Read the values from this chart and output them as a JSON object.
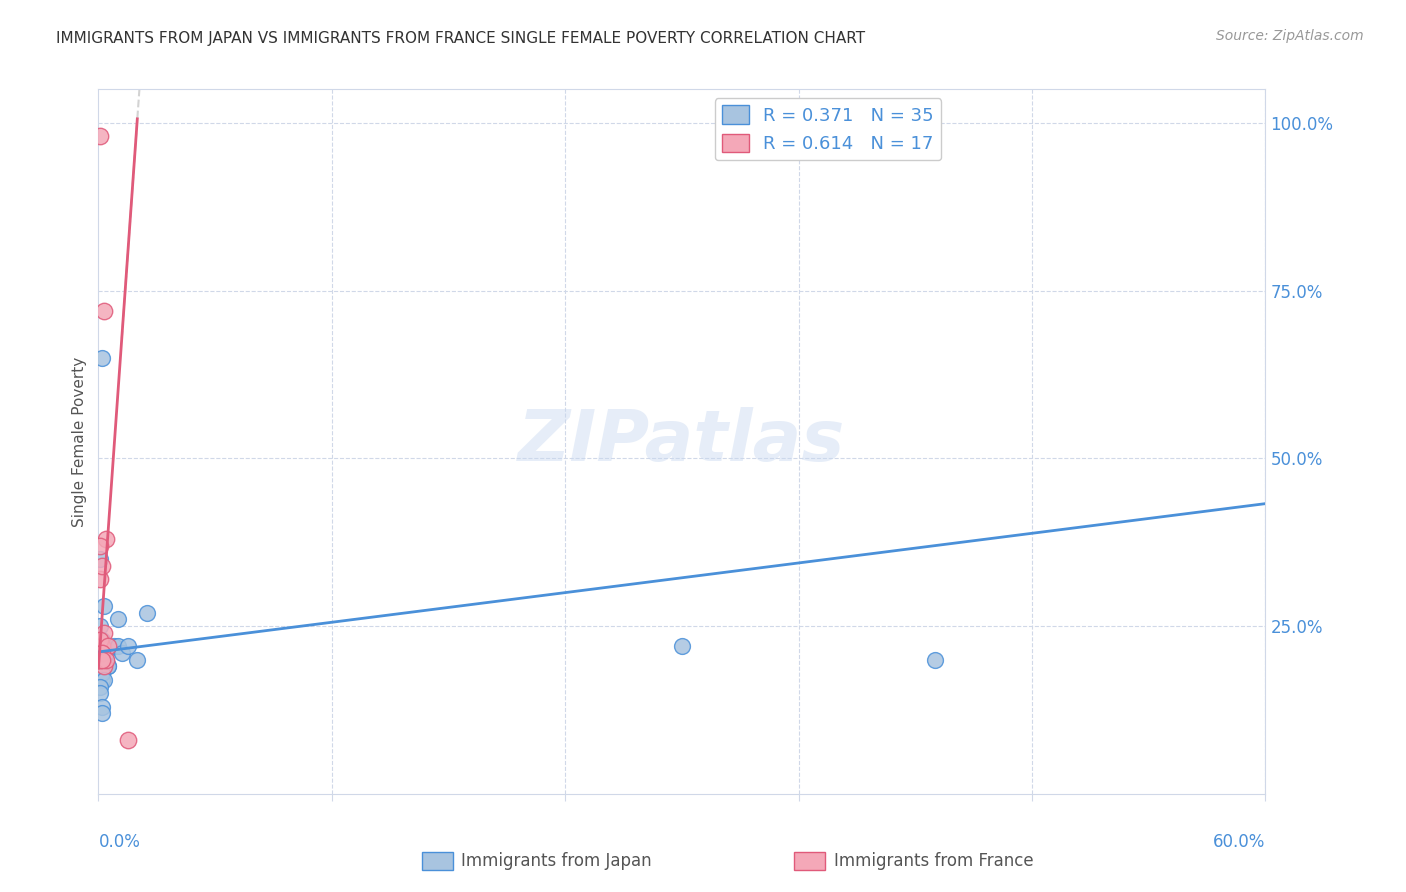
{
  "title": "IMMIGRANTS FROM JAPAN VS IMMIGRANTS FROM FRANCE SINGLE FEMALE POVERTY CORRELATION CHART",
  "source": "Source: ZipAtlas.com",
  "ylabel": "Single Female Poverty",
  "xlim": [
    0.0,
    0.6
  ],
  "ylim": [
    0.0,
    1.05
  ],
  "japan_R": 0.371,
  "japan_N": 35,
  "france_R": 0.614,
  "france_N": 17,
  "japan_color": "#a8c4e0",
  "france_color": "#f4a8b8",
  "japan_line_color": "#4a90d9",
  "france_line_color": "#e05a7a",
  "trend_line_dashed_color": "#c8c8c8",
  "legend_japan_label": "Immigrants from Japan",
  "legend_france_label": "Immigrants from France",
  "watermark": "ZIPatlas",
  "japan_x": [
    0.002,
    0.003,
    0.001,
    0.001,
    0.001,
    0.002,
    0.002,
    0.003,
    0.004,
    0.005,
    0.001,
    0.001,
    0.001,
    0.002,
    0.002,
    0.003,
    0.004,
    0.005,
    0.008,
    0.01,
    0.01,
    0.012,
    0.015,
    0.02,
    0.025,
    0.001,
    0.002,
    0.002,
    0.003,
    0.001,
    0.43,
    0.001,
    0.002,
    0.3,
    0.002
  ],
  "japan_y": [
    0.2,
    0.22,
    0.23,
    0.19,
    0.18,
    0.17,
    0.21,
    0.22,
    0.2,
    0.19,
    0.25,
    0.21,
    0.2,
    0.23,
    0.22,
    0.28,
    0.21,
    0.19,
    0.22,
    0.22,
    0.26,
    0.21,
    0.22,
    0.2,
    0.27,
    0.35,
    0.65,
    0.18,
    0.17,
    0.16,
    0.2,
    0.15,
    0.13,
    0.22,
    0.12
  ],
  "france_x": [
    0.001,
    0.002,
    0.003,
    0.004,
    0.001,
    0.001,
    0.002,
    0.003,
    0.005,
    0.001,
    0.002,
    0.003,
    0.004,
    0.001,
    0.002,
    0.015,
    0.002
  ],
  "france_y": [
    0.98,
    0.22,
    0.24,
    0.38,
    0.37,
    0.23,
    0.21,
    0.19,
    0.22,
    0.2,
    0.21,
    0.72,
    0.2,
    0.32,
    0.34,
    0.08,
    0.2
  ]
}
